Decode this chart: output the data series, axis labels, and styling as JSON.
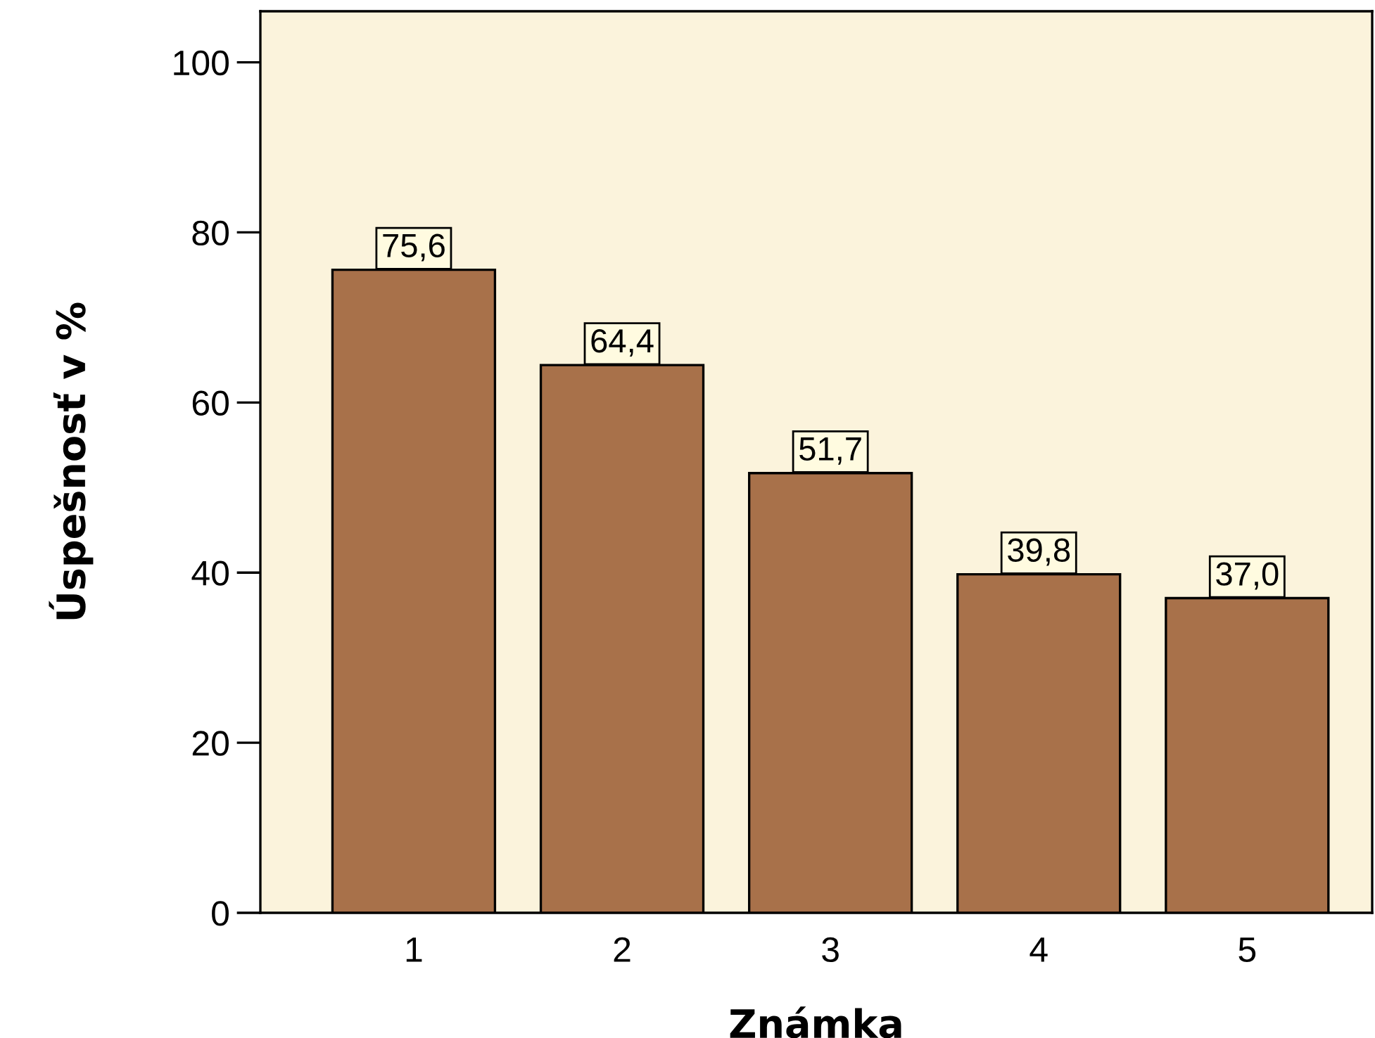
{
  "chart_data": {
    "type": "bar",
    "xlabel": "Známka",
    "ylabel": "Úspešnosť v %",
    "categories": [
      "1",
      "2",
      "3",
      "4",
      "5"
    ],
    "values": [
      75.6,
      64.4,
      51.7,
      39.8,
      37.0
    ],
    "value_labels": [
      "75,6",
      "64,4",
      "51,7",
      "39,8",
      "37,0"
    ],
    "color": "#a8714a",
    "ylim": [
      0,
      106
    ],
    "yticks": [
      0,
      20,
      40,
      60,
      80,
      100
    ],
    "grid": false,
    "legend": false
  }
}
